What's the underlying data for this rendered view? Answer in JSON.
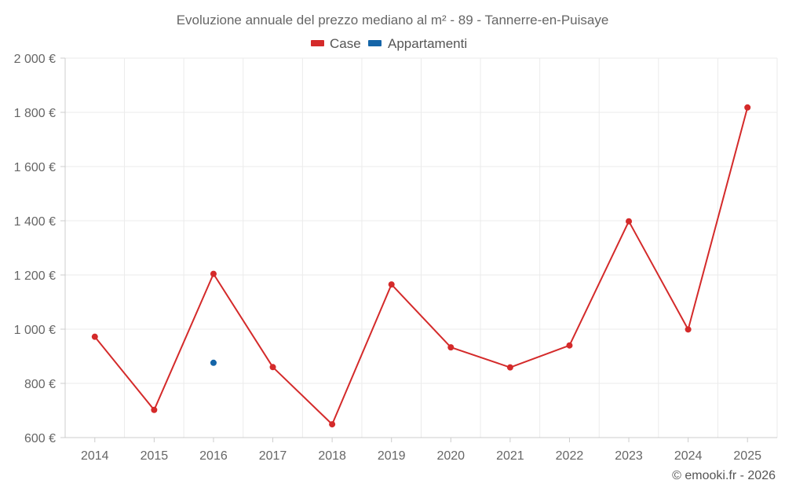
{
  "chart_data": {
    "type": "line",
    "title": "Evoluzione annuale del prezzo mediano al m² - 89 - Tannerre-en-Puisaye",
    "categories": [
      "2014",
      "2015",
      "2016",
      "2017",
      "2018",
      "2019",
      "2020",
      "2021",
      "2022",
      "2023",
      "2024",
      "2025"
    ],
    "series": [
      {
        "name": "Case",
        "color": "#d42a2a",
        "values": [
          972,
          702,
          1204,
          860,
          649,
          1165,
          933,
          859,
          940,
          1398,
          999,
          1818
        ]
      },
      {
        "name": "Appartamenti",
        "color": "#1565a8",
        "values": [
          null,
          null,
          876,
          null,
          null,
          null,
          null,
          null,
          null,
          null,
          null,
          null
        ]
      }
    ],
    "y_ticks": [
      "600 €",
      "800 €",
      "1 000 €",
      "1 200 €",
      "1 400 €",
      "1 600 €",
      "1 800 €",
      "2 000 €"
    ],
    "y_tick_values": [
      600,
      800,
      1000,
      1200,
      1400,
      1600,
      1800,
      2000
    ],
    "ylim": [
      600,
      2000
    ],
    "grid": true,
    "legend_position": "top-center"
  },
  "credit": "© emooki.fr - 2026"
}
